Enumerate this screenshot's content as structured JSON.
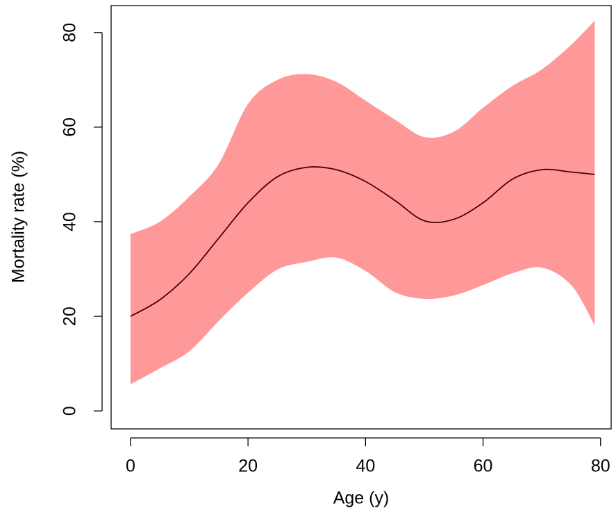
{
  "chart_data": {
    "type": "band-line",
    "x_label": "Age (y)",
    "y_label": "Mortality rate (%)",
    "x": [
      0,
      5,
      10,
      15,
      20,
      25,
      30,
      35,
      40,
      45,
      50,
      55,
      60,
      65,
      70,
      75,
      79
    ],
    "series": [
      {
        "color": "#4a0008",
        "values": [
          20,
          23.5,
          29,
          36.5,
          44,
          49.5,
          51.5,
          51,
          48.5,
          44.5,
          40.2,
          40.5,
          44,
          49,
          51,
          50.5,
          50
        ]
      }
    ],
    "band": {
      "color": "#ff9999",
      "upper": [
        37.4,
        40,
        45.3,
        52.2,
        64.9,
        70,
        71.2,
        69.6,
        65.6,
        61.6,
        57.9,
        59,
        64.1,
        68.7,
        72.2,
        77.4,
        82.5
      ],
      "lower": [
        5.6,
        9,
        12.6,
        19,
        25,
        29.9,
        31.5,
        32.4,
        29.6,
        25.1,
        23.7,
        24.4,
        26.6,
        29.1,
        30.3,
        26.6,
        18.1
      ]
    },
    "xlim": [
      -3.3,
      81.8
    ],
    "ylim": [
      -3.8,
      85.7
    ],
    "xticks": [
      0,
      20,
      40,
      60,
      80
    ],
    "yticks": [
      0,
      20,
      40,
      60,
      80
    ]
  }
}
